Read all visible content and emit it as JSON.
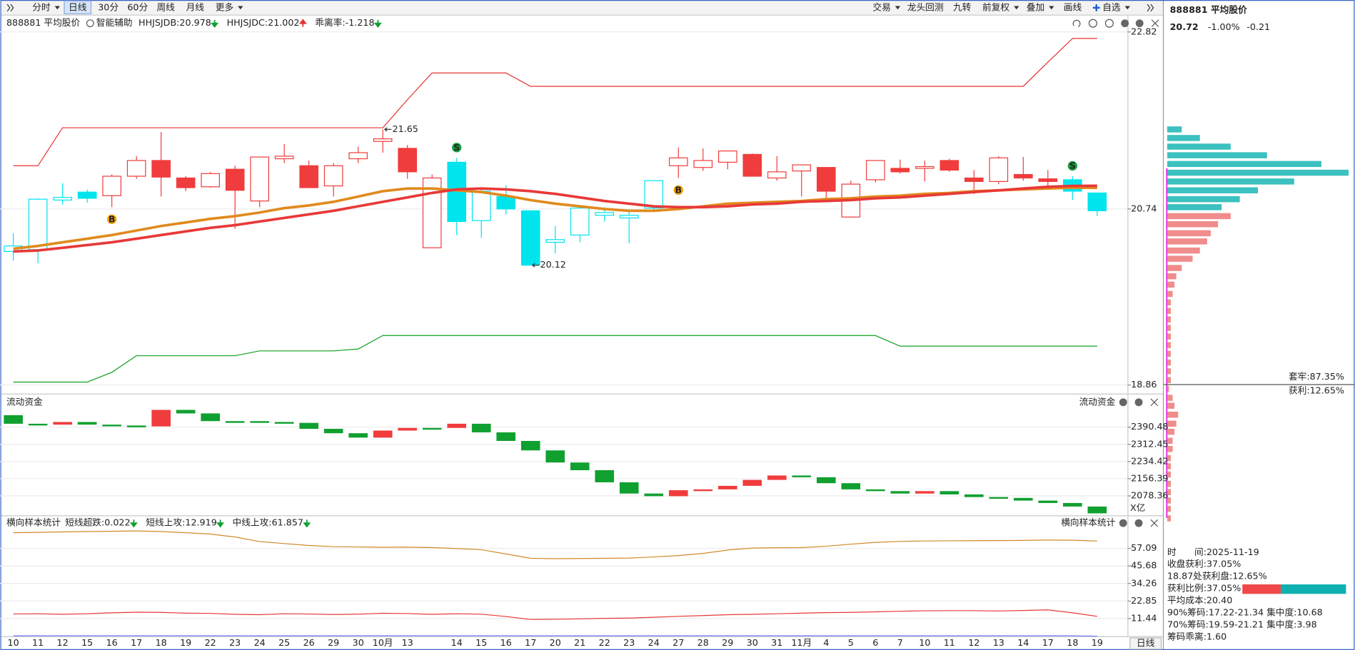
{
  "toolbar": {
    "left": [
      {
        "text": "分时",
        "dropdown": true
      },
      {
        "text": "日线",
        "active": true
      },
      {
        "text": "30分"
      },
      {
        "text": "60分"
      },
      {
        "text": "周线"
      },
      {
        "text": "月线"
      },
      {
        "text": "更多",
        "dropdown": true
      }
    ],
    "right": [
      {
        "text": "交易",
        "dropdown": true
      },
      {
        "text": "龙头回测"
      },
      {
        "text": "九转"
      },
      {
        "text": "前复权",
        "dropdown": true
      },
      {
        "text": "叠加",
        "dropdown": true
      },
      {
        "text": "画线"
      },
      {
        "text": "自选",
        "dropdown": true,
        "plus": true
      }
    ]
  },
  "status": "日线",
  "chart_data": [
    {
      "type": "candlestick",
      "title": "888881 平均股价",
      "assist": "智能辅助",
      "categories": [
        "10",
        "11",
        "12",
        "15",
        "16",
        "17",
        "18",
        "19",
        "22",
        "23",
        "24",
        "25",
        "26",
        "29",
        "30",
        "10月",
        "13",
        null,
        "14",
        "15",
        "16",
        "17",
        "20",
        "21",
        "22",
        "23",
        "24",
        "27",
        "28",
        "29",
        "30",
        "31",
        "11月",
        "4",
        "5",
        "6",
        "7",
        "10",
        "11",
        "12",
        "13",
        "14",
        "17",
        "18",
        "19"
      ],
      "open": [
        20.27,
        20.29,
        20.84,
        20.93,
        20.89,
        21.11,
        21.29,
        21.09,
        20.99,
        21.19,
        20.83,
        21.31,
        21.23,
        21.0,
        21.31,
        21.51,
        21.43,
        20.31,
        21.27,
        20.61,
        20.88,
        20.72,
        20.37,
        20.45,
        20.67,
        20.64,
        20.75,
        21.23,
        21.21,
        21.27,
        21.36,
        21.09,
        21.17,
        21.21,
        20.65,
        21.07,
        21.2,
        21.2,
        21.29,
        21.09,
        21.05,
        21.13,
        21.08,
        21.07,
        20.92
      ],
      "high": [
        20.47,
        20.86,
        21.03,
        20.96,
        21.13,
        21.34,
        21.62,
        21.11,
        21.16,
        21.23,
        21.33,
        21.48,
        21.29,
        21.26,
        21.45,
        21.65,
        21.47,
        21.13,
        21.32,
        20.98,
        21.01,
        20.72,
        20.55,
        20.78,
        20.76,
        20.72,
        21.06,
        21.44,
        21.43,
        21.4,
        21.37,
        21.34,
        21.24,
        21.21,
        21.06,
        21.29,
        21.3,
        21.29,
        21.31,
        21.18,
        21.34,
        21.33,
        21.18,
        21.11,
        20.92
      ],
      "low": [
        20.17,
        20.14,
        20.79,
        20.81,
        20.76,
        21.08,
        20.88,
        20.94,
        20.98,
        20.52,
        20.76,
        21.26,
        20.98,
        20.88,
        21.26,
        21.38,
        21.08,
        20.31,
        20.45,
        20.42,
        20.68,
        20.12,
        20.25,
        20.37,
        20.6,
        20.36,
        20.73,
        21.09,
        21.17,
        21.19,
        21.11,
        21.06,
        20.88,
        20.84,
        20.65,
        21.04,
        21.14,
        21.05,
        21.16,
        20.91,
        21.02,
        21.06,
        21.0,
        20.84,
        20.66
      ],
      "close": [
        20.33,
        20.85,
        20.87,
        20.86,
        21.11,
        21.29,
        21.1,
        20.98,
        21.14,
        20.95,
        21.33,
        21.34,
        20.98,
        21.23,
        21.38,
        21.54,
        21.16,
        21.09,
        20.6,
        20.94,
        20.74,
        20.12,
        20.4,
        20.75,
        20.7,
        20.67,
        21.06,
        21.32,
        21.29,
        21.4,
        21.11,
        21.16,
        21.24,
        20.94,
        21.02,
        21.29,
        21.16,
        21.22,
        21.18,
        21.05,
        21.32,
        21.09,
        21.05,
        20.94,
        20.72
      ],
      "signals": [
        null,
        null,
        null,
        null,
        "B",
        null,
        null,
        null,
        null,
        null,
        null,
        null,
        null,
        null,
        null,
        null,
        null,
        null,
        "S",
        null,
        null,
        null,
        null,
        null,
        null,
        null,
        null,
        "B",
        null,
        null,
        null,
        null,
        null,
        null,
        null,
        null,
        null,
        null,
        null,
        null,
        null,
        null,
        null,
        "S",
        null
      ],
      "initial_signal": "S",
      "colors": {
        "B": "#f03c3c",
        "S": "#00e4ee"
      },
      "signal_colors": {
        "B": "#f5a000",
        "S": "#18a040"
      },
      "max_label": "21.65",
      "min_label": "20.12",
      "ylim": [
        18.86,
        22.82
      ],
      "yticks": [
        18.86,
        20.74,
        22.82
      ],
      "log_scale": true,
      "grid": true,
      "series": [
        {
          "name": "HHJSJDB:20.978",
          "color": "#e08a1e",
          "trend": "down",
          "values": [
            20.3,
            20.33,
            20.37,
            20.41,
            20.45,
            20.5,
            20.55,
            20.59,
            20.63,
            20.66,
            20.7,
            20.75,
            20.78,
            20.82,
            20.88,
            20.94,
            20.97,
            20.97,
            20.95,
            20.93,
            20.89,
            20.84,
            20.8,
            20.77,
            20.74,
            20.72,
            20.72,
            20.74,
            20.77,
            20.8,
            20.81,
            20.82,
            20.83,
            20.85,
            20.86,
            20.88,
            20.89,
            20.91,
            20.92,
            20.94,
            20.95,
            20.96,
            20.97,
            20.98,
            20.978
          ]
        },
        {
          "name": "HHJSJDC:21.002",
          "color": "#e83838",
          "trend": "up",
          "values": [
            20.27,
            20.28,
            20.31,
            20.34,
            20.37,
            20.41,
            20.45,
            20.49,
            20.53,
            20.56,
            20.6,
            20.64,
            20.68,
            20.72,
            20.77,
            20.82,
            20.87,
            20.92,
            20.96,
            20.97,
            20.96,
            20.94,
            20.91,
            20.87,
            20.83,
            20.8,
            20.77,
            20.76,
            20.76,
            20.77,
            20.79,
            20.8,
            20.82,
            20.83,
            20.84,
            20.86,
            20.87,
            20.89,
            20.91,
            20.93,
            20.95,
            20.97,
            20.99,
            21.0,
            21.002
          ]
        }
      ],
      "indicators": [
        {
          "name": "乖离率:-1.218",
          "color": "#e08a1e",
          "trend": "down"
        }
      ],
      "bands": [
        {
          "color": "#e83030",
          "values": [
            21.23,
            21.23,
            21.67,
            21.67,
            21.67,
            21.67,
            21.67,
            21.67,
            21.67,
            21.67,
            21.67,
            21.67,
            21.67,
            21.67,
            21.67,
            21.67,
            22.0,
            22.32,
            22.32,
            22.32,
            22.32,
            22.16,
            22.16,
            22.16,
            22.16,
            22.16,
            22.16,
            22.16,
            22.16,
            22.16,
            22.16,
            22.16,
            22.16,
            22.16,
            22.16,
            22.16,
            22.16,
            22.16,
            22.16,
            22.16,
            22.16,
            22.16,
            22.45,
            22.74,
            22.74
          ]
        },
        {
          "color": "#10a020",
          "values": [
            18.89,
            18.89,
            18.89,
            18.89,
            18.99,
            19.16,
            19.16,
            19.16,
            19.16,
            19.16,
            19.21,
            19.21,
            19.21,
            19.21,
            19.23,
            19.37,
            19.37,
            19.37,
            19.37,
            19.37,
            19.37,
            19.37,
            19.37,
            19.37,
            19.37,
            19.37,
            19.37,
            19.37,
            19.37,
            19.37,
            19.37,
            19.37,
            19.37,
            19.37,
            19.37,
            19.37,
            19.26,
            19.26,
            19.26,
            19.26,
            19.26,
            19.26,
            19.26,
            19.26,
            19.26
          ]
        }
      ]
    },
    {
      "type": "waterfall",
      "title": "流动资金",
      "open": [
        2445,
        2406,
        2402,
        2414,
        2402,
        2398,
        2394,
        2469,
        2453,
        2418,
        2418,
        2414,
        2410,
        2383,
        2363,
        2343,
        2375,
        2387,
        2387,
        2406,
        2367,
        2328,
        2285,
        2230,
        2195,
        2140,
        2089,
        2077,
        2104,
        2108,
        2124,
        2151,
        2171,
        2163,
        2136,
        2108,
        2100,
        2089,
        2100,
        2085,
        2073,
        2069,
        2057,
        2046,
        2030
      ],
      "close": [
        2406,
        2402,
        2414,
        2402,
        2398,
        2394,
        2469,
        2453,
        2418,
        2418,
        2414,
        2410,
        2383,
        2363,
        2343,
        2375,
        2387,
        2387,
        2406,
        2367,
        2328,
        2285,
        2230,
        2195,
        2140,
        2089,
        2077,
        2104,
        2108,
        2124,
        2151,
        2171,
        2163,
        2136,
        2108,
        2100,
        2089,
        2100,
        2085,
        2073,
        2069,
        2057,
        2046,
        2030,
        1999
      ],
      "colors": {
        "up": "#f03c3c",
        "down": "#10a030"
      },
      "ylim": [
        1990,
        2535
      ],
      "yticks": [
        2390.48,
        2312.45,
        2234.42,
        2156.39,
        2078.36
      ],
      "unit": "X亿",
      "grid": true
    },
    {
      "type": "line",
      "title": "横向样本统计",
      "series": [
        {
          "name": "短线超跌:0.022",
          "color": "#7b7bff",
          "trend": "down",
          "values": [
            0.3,
            0.3,
            0.3,
            0.3,
            0.3,
            0.3,
            0.3,
            0.3,
            0.3,
            0.3,
            0.3,
            0.3,
            0.3,
            0.3,
            0.3,
            0.3,
            0.3,
            0.3,
            0.3,
            0.3,
            0.3,
            0.3,
            0.3,
            0.3,
            0.3,
            0.3,
            0.3,
            0.3,
            0.3,
            0.3,
            0.3,
            0.3,
            0.3,
            0.3,
            0.3,
            0.3,
            0.3,
            0.3,
            0.3,
            0.3,
            0.3,
            0.3,
            0.3,
            0.3,
            0.022
          ]
        },
        {
          "name": "短线上攻:12.919",
          "color": "#e83838",
          "trend": "down",
          "values": [
            14.5,
            14.6,
            14.2,
            14.6,
            15.2,
            15.6,
            15.5,
            15.0,
            14.8,
            14.2,
            14.0,
            14.6,
            14.4,
            14.1,
            14.3,
            14.9,
            14.7,
            14.2,
            14.6,
            14.3,
            12.8,
            10.9,
            11.0,
            11.3,
            11.6,
            11.8,
            12.3,
            12.9,
            13.4,
            14.0,
            14.2,
            14.6,
            15.0,
            15.3,
            15.5,
            15.8,
            16.2,
            16.5,
            16.6,
            16.6,
            16.4,
            16.7,
            17.1,
            15.2,
            12.919
          ]
        },
        {
          "name": "中线上攻:61.857",
          "color": "#d08a2a",
          "trend": "down",
          "values": [
            67.3,
            67.5,
            67.8,
            68.0,
            68.2,
            68.4,
            68.0,
            67.3,
            66.4,
            64.5,
            61.5,
            60.2,
            59.0,
            58.2,
            58.0,
            57.8,
            57.9,
            57.6,
            57.0,
            56.2,
            53.5,
            50.6,
            50.4,
            50.5,
            50.6,
            50.8,
            51.5,
            52.4,
            53.8,
            56.0,
            57.3,
            57.5,
            57.6,
            58.5,
            59.8,
            61.0,
            61.6,
            61.9,
            62.0,
            62.1,
            62.2,
            62.3,
            62.5,
            62.4,
            61.857
          ]
        }
      ],
      "ylim": [
        0,
        78
      ],
      "yticks": [
        57.09,
        45.68,
        34.26,
        22.85,
        11.44
      ],
      "grid": true
    }
  ],
  "side_panel": {
    "code_name": "888881 平均股价",
    "price": 20.72,
    "change_pct": "-1.00%",
    "change": -0.21,
    "chips": {
      "prices": [
        21.65,
        21.55,
        21.45,
        21.35,
        21.25,
        21.15,
        21.05,
        20.95,
        20.85,
        20.76,
        20.66,
        20.57,
        20.47,
        20.38,
        20.28,
        20.19,
        20.09,
        20.0,
        19.91,
        19.81,
        19.72,
        19.63,
        19.54,
        19.45,
        19.36,
        19.27,
        19.18,
        19.09,
        19.0,
        18.91,
        18.82,
        18.73,
        18.65,
        18.56,
        18.47,
        18.39,
        18.3,
        18.22,
        18.13,
        18.05,
        17.97,
        17.88,
        17.8,
        17.72,
        17.64,
        17.55
      ],
      "volumes": [
        8,
        18,
        35,
        55,
        85,
        100,
        70,
        50,
        40,
        30,
        35,
        28,
        24,
        22,
        18,
        14,
        8,
        5,
        4,
        3,
        2,
        2,
        2,
        2,
        2,
        2,
        2,
        2,
        2,
        2,
        1,
        3,
        4,
        6,
        5,
        4,
        3,
        3,
        2,
        2,
        2,
        2,
        2,
        2,
        2,
        2
      ],
      "colors": {
        "above": "#3cc0c0",
        "below": "#f08c8c"
      }
    },
    "trapped": "套牢:87.35%",
    "profit": "获利:12.65%",
    "stats": [
      "时　　间:2025-11-19",
      "收盘获利:37.05%",
      "18.87处获利盘:12.65%",
      "获利比例:37.05%",
      "平均成本:20.40",
      "90%筹码:17.22-21.34 集中度:10.68",
      "70%筹码:19.59-21.21 集中度:3.98",
      "筹码乖离:1.60"
    ],
    "profit_ratio": 37.05,
    "profit_bar_colors": {
      "profit": "#f04848",
      "rest": "#10b0b0"
    }
  }
}
